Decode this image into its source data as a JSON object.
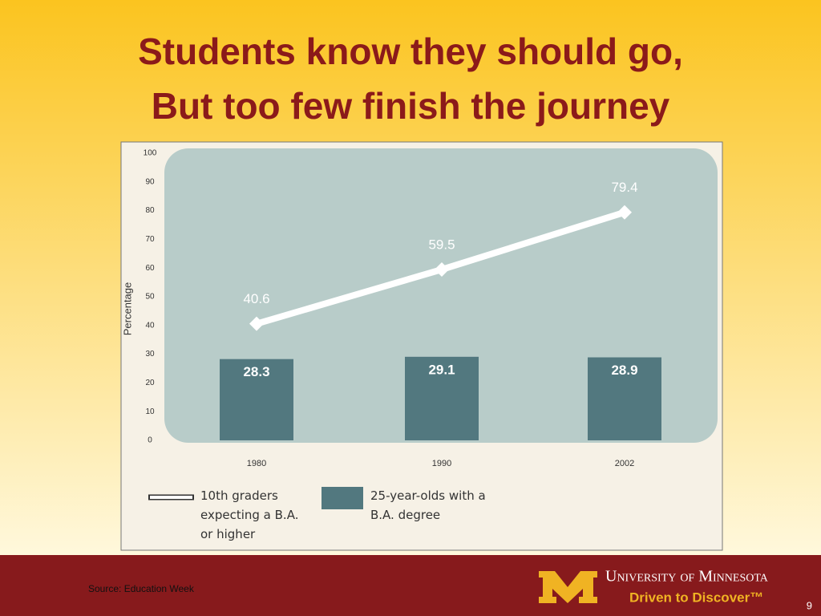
{
  "slide": {
    "title_lines": [
      "Students know they should go,",
      "But too few finish the journey"
    ],
    "source": "Source:  Education Week",
    "page_number": "9",
    "logo": {
      "name": "University of Minnesota",
      "tagline": "Driven to Discover™"
    }
  },
  "chart_data": {
    "type": "combo",
    "y_label": "Percentage",
    "categories": [
      "1980",
      "1990",
      "2002"
    ],
    "series": [
      {
        "name": "10th graders expecting a B.A. or higher",
        "type": "line",
        "color": "#ffffff",
        "values": [
          40.6,
          59.5,
          79.4
        ]
      },
      {
        "name": "25-year-olds with a B.A. degree",
        "type": "bar",
        "color": "#52787f",
        "values": [
          28.3,
          29.1,
          28.9
        ]
      }
    ],
    "ylim": [
      0,
      100
    ],
    "yticks": [
      0,
      10,
      20,
      30,
      40,
      50,
      60,
      70,
      80,
      90,
      100
    ]
  }
}
